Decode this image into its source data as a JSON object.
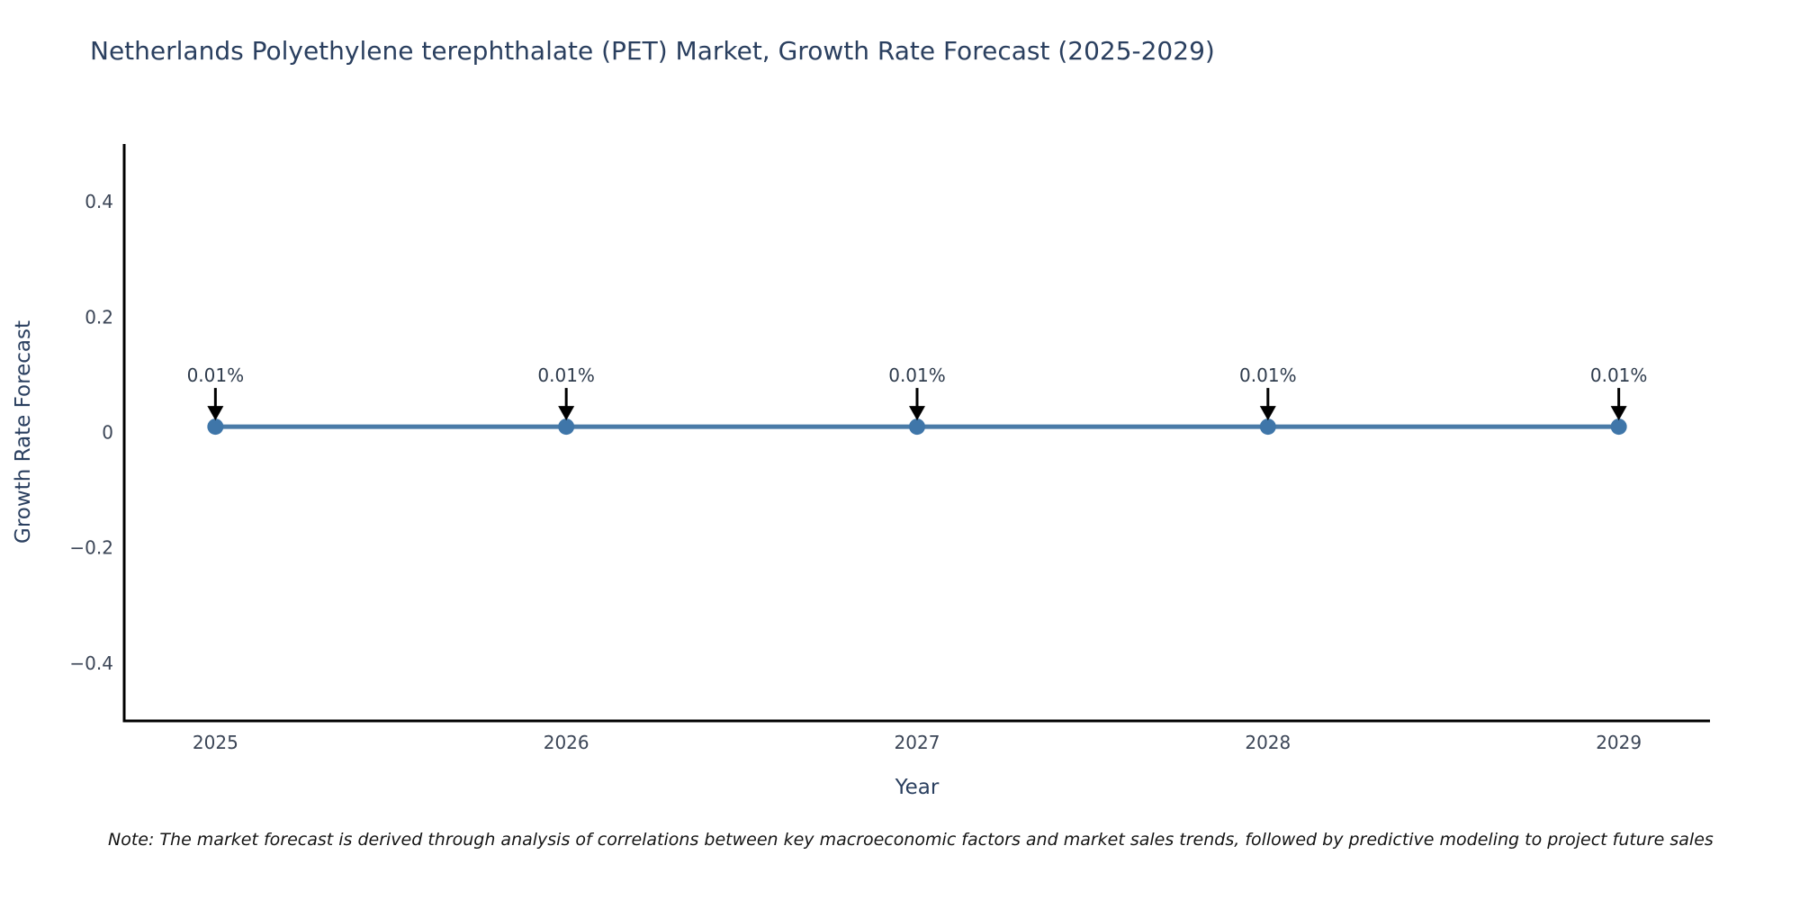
{
  "chart_data": {
    "type": "line",
    "title": "Netherlands Polyethylene terephthalate (PET) Market, Growth Rate Forecast (2025-2029)",
    "xlabel": "Year",
    "ylabel": "Growth Rate Forecast",
    "x": [
      2025,
      2026,
      2027,
      2028,
      2029
    ],
    "series": [
      {
        "name": "Growth Rate Forecast",
        "values": [
          0.01,
          0.01,
          0.01,
          0.01,
          0.01
        ]
      }
    ],
    "point_labels": [
      "0.01%",
      "0.01%",
      "0.01%",
      "0.01%",
      "0.01%"
    ],
    "xlim": [
      2024.74,
      2029.26
    ],
    "ylim": [
      -0.5,
      0.5
    ],
    "xticks": [
      "2025",
      "2026",
      "2027",
      "2028",
      "2029"
    ],
    "xtick_values": [
      2025,
      2026,
      2027,
      2028,
      2029
    ],
    "yticks": [
      -0.4,
      -0.2,
      0,
      0.2,
      0.4
    ],
    "ytick_labels": [
      "−0.4",
      "−0.2",
      "0",
      "0.2",
      "0.4"
    ],
    "grid": false,
    "legend": "none",
    "colors": {
      "line": "#4a7ba8",
      "marker": "#3f76a9",
      "annotation_arrow": "#000000",
      "annotation_text": "#2e3b4c",
      "axis_line": "#000000",
      "tick_text": "#3b4556",
      "title_text": "#2a3f5f"
    }
  },
  "note": {
    "text": "Note: The market forecast is derived through analysis of correlations between key macroeconomic factors and market sales trends, followed by predictive modeling to project future sales"
  }
}
